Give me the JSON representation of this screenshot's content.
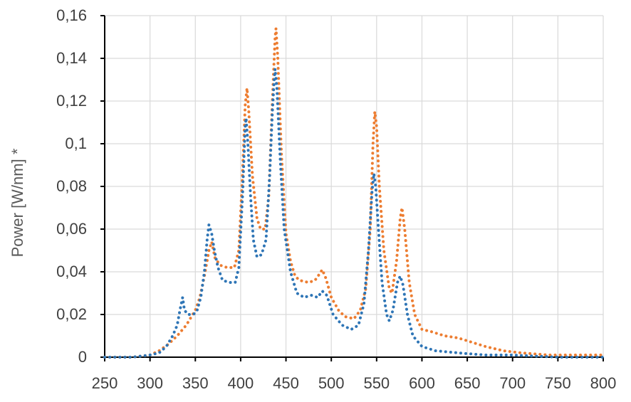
{
  "chart_data": {
    "type": "line",
    "title": "",
    "xlabel": "",
    "ylabel": "Power [W/nm] *",
    "xlim": [
      250,
      800
    ],
    "ylim": [
      0,
      0.16
    ],
    "x_ticks": [
      "250",
      "300",
      "350",
      "400",
      "450",
      "500",
      "550",
      "600",
      "650",
      "700",
      "750",
      "800"
    ],
    "y_ticks": [
      "0",
      "0,02",
      "0,04",
      "0,06",
      "0,08",
      "0,1",
      "0,12",
      "0,14",
      "0,16"
    ],
    "grid": true,
    "legend": "none",
    "series": [
      {
        "color": "#ED7D31",
        "style": "dotted",
        "points": [
          [
            250,
            0.0
          ],
          [
            280,
            0.0
          ],
          [
            300,
            0.001
          ],
          [
            310,
            0.003
          ],
          [
            320,
            0.006
          ],
          [
            330,
            0.01
          ],
          [
            340,
            0.015
          ],
          [
            350,
            0.022
          ],
          [
            355,
            0.028
          ],
          [
            360,
            0.038
          ],
          [
            365,
            0.05
          ],
          [
            368,
            0.054
          ],
          [
            372,
            0.046
          ],
          [
            378,
            0.043
          ],
          [
            385,
            0.042
          ],
          [
            393,
            0.042
          ],
          [
            398,
            0.05
          ],
          [
            402,
            0.085
          ],
          [
            405,
            0.118
          ],
          [
            407,
            0.126
          ],
          [
            409,
            0.115
          ],
          [
            413,
            0.085
          ],
          [
            418,
            0.065
          ],
          [
            422,
            0.06
          ],
          [
            427,
            0.06
          ],
          [
            431,
            0.075
          ],
          [
            435,
            0.12
          ],
          [
            438,
            0.15
          ],
          [
            439,
            0.154
          ],
          [
            441,
            0.14
          ],
          [
            445,
            0.095
          ],
          [
            450,
            0.058
          ],
          [
            455,
            0.045
          ],
          [
            460,
            0.038
          ],
          [
            465,
            0.036
          ],
          [
            475,
            0.035
          ],
          [
            482,
            0.036
          ],
          [
            487,
            0.039
          ],
          [
            490,
            0.041
          ],
          [
            494,
            0.037
          ],
          [
            500,
            0.028
          ],
          [
            508,
            0.022
          ],
          [
            515,
            0.019
          ],
          [
            525,
            0.018
          ],
          [
            532,
            0.022
          ],
          [
            538,
            0.032
          ],
          [
            543,
            0.06
          ],
          [
            546,
            0.1
          ],
          [
            548,
            0.115
          ],
          [
            550,
            0.108
          ],
          [
            553,
            0.08
          ],
          [
            558,
            0.05
          ],
          [
            564,
            0.032
          ],
          [
            567,
            0.03
          ],
          [
            572,
            0.045
          ],
          [
            576,
            0.065
          ],
          [
            578,
            0.07
          ],
          [
            581,
            0.06
          ],
          [
            586,
            0.035
          ],
          [
            592,
            0.02
          ],
          [
            600,
            0.013
          ],
          [
            610,
            0.012
          ],
          [
            625,
            0.01
          ],
          [
            640,
            0.009
          ],
          [
            655,
            0.007
          ],
          [
            670,
            0.005
          ],
          [
            690,
            0.003
          ],
          [
            710,
            0.002
          ],
          [
            740,
            0.001
          ],
          [
            770,
            0.001
          ],
          [
            800,
            0.001
          ]
        ]
      },
      {
        "color": "#2E75B6",
        "style": "dotted",
        "points": [
          [
            250,
            0.0
          ],
          [
            280,
            0.0
          ],
          [
            300,
            0.001
          ],
          [
            310,
            0.002
          ],
          [
            318,
            0.005
          ],
          [
            325,
            0.01
          ],
          [
            330,
            0.015
          ],
          [
            333,
            0.022
          ],
          [
            336,
            0.028
          ],
          [
            338,
            0.022
          ],
          [
            342,
            0.02
          ],
          [
            348,
            0.02
          ],
          [
            352,
            0.022
          ],
          [
            356,
            0.028
          ],
          [
            360,
            0.04
          ],
          [
            363,
            0.055
          ],
          [
            365,
            0.062
          ],
          [
            368,
            0.058
          ],
          [
            371,
            0.05
          ],
          [
            375,
            0.042
          ],
          [
            380,
            0.036
          ],
          [
            388,
            0.035
          ],
          [
            394,
            0.035
          ],
          [
            398,
            0.042
          ],
          [
            402,
            0.075
          ],
          [
            405,
            0.108
          ],
          [
            406,
            0.112
          ],
          [
            408,
            0.1
          ],
          [
            411,
            0.075
          ],
          [
            414,
            0.055
          ],
          [
            418,
            0.047
          ],
          [
            423,
            0.048
          ],
          [
            428,
            0.055
          ],
          [
            432,
            0.085
          ],
          [
            435,
            0.115
          ],
          [
            437,
            0.13
          ],
          [
            438,
            0.135
          ],
          [
            440,
            0.126
          ],
          [
            444,
            0.09
          ],
          [
            448,
            0.06
          ],
          [
            455,
            0.04
          ],
          [
            462,
            0.03
          ],
          [
            470,
            0.028
          ],
          [
            478,
            0.029
          ],
          [
            485,
            0.028
          ],
          [
            490,
            0.031
          ],
          [
            495,
            0.029
          ],
          [
            502,
            0.02
          ],
          [
            512,
            0.015
          ],
          [
            522,
            0.013
          ],
          [
            530,
            0.015
          ],
          [
            536,
            0.025
          ],
          [
            541,
            0.05
          ],
          [
            545,
            0.078
          ],
          [
            547,
            0.086
          ],
          [
            549,
            0.08
          ],
          [
            552,
            0.06
          ],
          [
            556,
            0.035
          ],
          [
            561,
            0.02
          ],
          [
            564,
            0.017
          ],
          [
            568,
            0.022
          ],
          [
            573,
            0.035
          ],
          [
            576,
            0.038
          ],
          [
            579,
            0.034
          ],
          [
            584,
            0.02
          ],
          [
            590,
            0.01
          ],
          [
            600,
            0.005
          ],
          [
            615,
            0.003
          ],
          [
            640,
            0.002
          ],
          [
            670,
            0.001
          ],
          [
            700,
            0.001
          ],
          [
            750,
            0.0
          ],
          [
            800,
            0.0
          ]
        ]
      }
    ]
  }
}
